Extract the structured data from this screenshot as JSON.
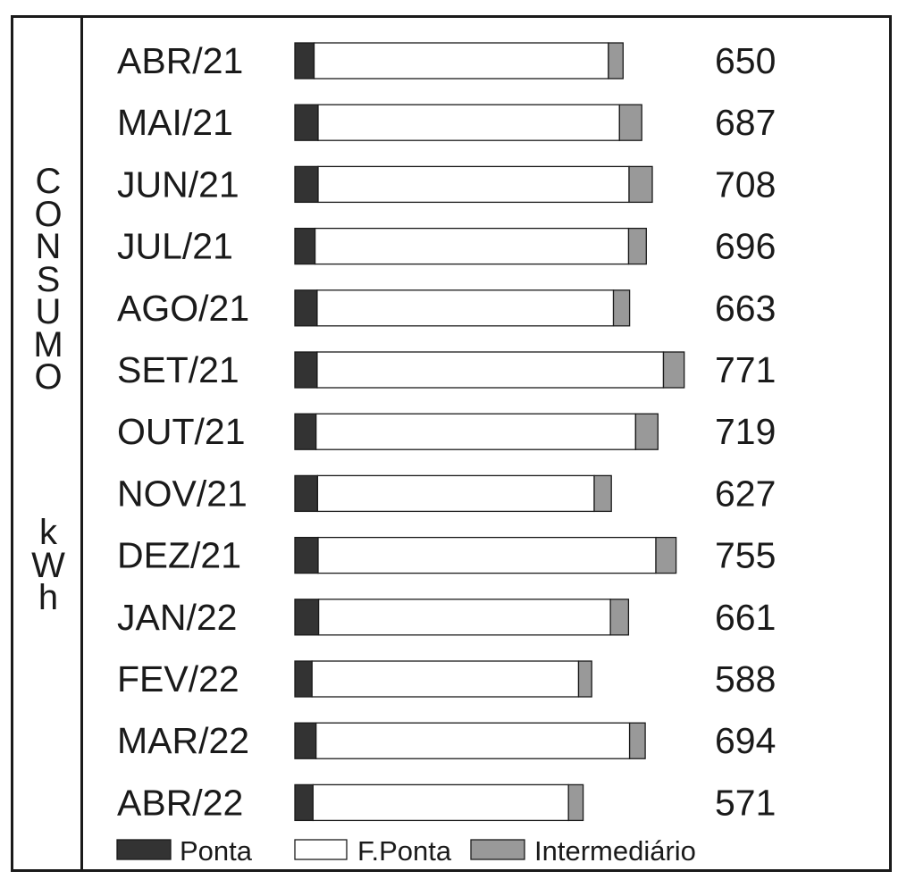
{
  "chart_data": {
    "type": "bar",
    "orientation": "horizontal",
    "stacked": true,
    "ylabel": "CONSUMO kWh",
    "ylabel_words": [
      "CONSUMO",
      "kWh"
    ],
    "categories": [
      "ABR/21",
      "MAI/21",
      "JUN/21",
      "JUL/21",
      "AGO/21",
      "SET/21",
      "OUT/21",
      "NOV/21",
      "DEZ/21",
      "JAN/22",
      "FEV/22",
      "MAR/22",
      "ABR/22"
    ],
    "totals": [
      "650",
      "687",
      "708",
      "696",
      "663",
      "771",
      "719",
      "627",
      "755",
      "661",
      "588",
      "694",
      "571"
    ],
    "series": [
      {
        "name": "Ponta",
        "color": "#333333",
        "values": [
          38,
          46,
          46,
          40,
          44,
          44,
          42,
          45,
          46,
          47,
          34,
          42,
          36
        ]
      },
      {
        "name": "F.Ponta",
        "color": "#ffffff",
        "values": [
          583,
          597,
          616,
          621,
          587,
          686,
          633,
          548,
          669,
          578,
          528,
          621,
          506
        ]
      },
      {
        "name": "Intermediário",
        "color": "#999999",
        "values": [
          29,
          44,
          46,
          35,
          32,
          41,
          44,
          34,
          40,
          36,
          26,
          31,
          29
        ]
      }
    ],
    "legend": "bottom",
    "grid": false
  }
}
